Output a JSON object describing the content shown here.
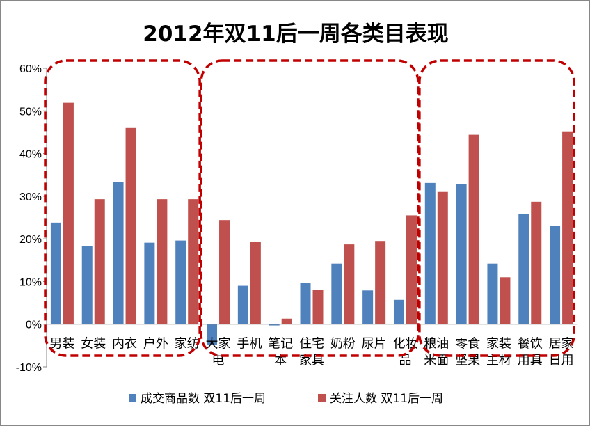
{
  "chart_data": {
    "type": "bar",
    "title": "2012年双11后一周各类目表现",
    "categories": [
      "男装",
      "女装",
      "内衣",
      "户外",
      "家纺",
      "大家电",
      "手机",
      "笔记本",
      "住宅家具",
      "奶粉",
      "尿片",
      "化妆品",
      "粮油米面",
      "零食坚果",
      "家装主材",
      "餐饮用具",
      "居家日用"
    ],
    "series": [
      {
        "name": "成交商品数 双11后一周",
        "color": "#4F81BD",
        "values": [
          23.8,
          18.3,
          33.4,
          19.1,
          19.6,
          -4.8,
          9.0,
          -0.3,
          9.7,
          14.2,
          7.9,
          5.7,
          33.1,
          32.9,
          14.2,
          25.9,
          23.1
        ]
      },
      {
        "name": "关注人数 双11后一周",
        "color": "#C0504D",
        "values": [
          51.9,
          29.3,
          46.0,
          29.3,
          29.3,
          24.4,
          19.3,
          1.3,
          8.0,
          18.7,
          19.5,
          25.5,
          31.0,
          44.4,
          11.0,
          28.7,
          45.2
        ]
      }
    ],
    "ylim": [
      -10,
      60
    ],
    "yticks": [
      "-10%",
      "0%",
      "10%",
      "20%",
      "30%",
      "40%",
      "50%",
      "60%"
    ],
    "ytick_values": [
      -10,
      0,
      10,
      20,
      30,
      40,
      50,
      60
    ],
    "legend_position": "bottom",
    "grid": false,
    "annotations": "three red dashed rounded boxes grouping categories: 服装 (男装–家纺), 电子/母婴 (大家电–化妆品), 食品/家居 (粮油米面–居家日用)",
    "annotation_color": "#C00000"
  }
}
